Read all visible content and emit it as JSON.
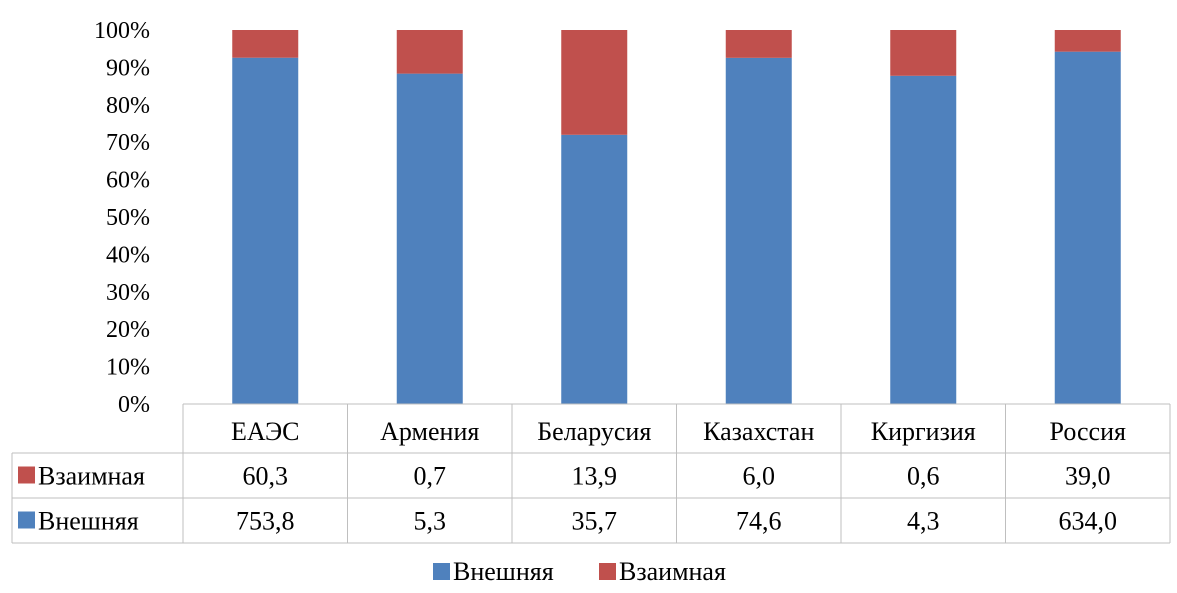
{
  "chart_data": {
    "type": "bar",
    "stacked": "percent",
    "categories": [
      "ЕАЭС",
      "Армения",
      "Беларусия",
      "Казахстан",
      "Киргизия",
      "Россия"
    ],
    "series": [
      {
        "name": "Внешняя",
        "values": [
          753.8,
          5.3,
          35.7,
          74.6,
          4.3,
          634.0
        ],
        "display": [
          "753,8",
          "5,3",
          "35,7",
          "74,6",
          "4,3",
          "634,0"
        ],
        "color": "#4f81bd"
      },
      {
        "name": "Взаимная",
        "values": [
          60.3,
          0.7,
          13.9,
          6.0,
          0.6,
          39.0
        ],
        "display": [
          "60,3",
          "0,7",
          "13,9",
          "6,0",
          "0,6",
          "39,0"
        ],
        "color": "#c0504d"
      }
    ],
    "yticks": [
      "0%",
      "10%",
      "20%",
      "30%",
      "40%",
      "50%",
      "60%",
      "70%",
      "80%",
      "90%",
      "100%"
    ],
    "ylim": [
      0,
      100
    ],
    "data_table": true,
    "table_rows_order": [
      "Взаимная",
      "Внешняя"
    ],
    "legend": {
      "position": "bottom",
      "entries": [
        "Внешняя",
        "Взаимная"
      ]
    }
  }
}
